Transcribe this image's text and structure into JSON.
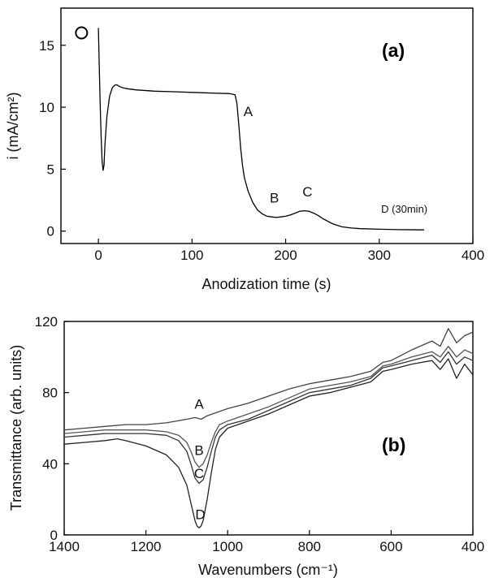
{
  "chart_data": [
    {
      "type": "line",
      "panel_label": "(a)",
      "xlabel": "Anodization time (s)",
      "ylabel": "i (mA/cm²)",
      "xlim": [
        -40,
        400
      ],
      "ylim": [
        -1,
        18
      ],
      "xticks": [
        0,
        100,
        200,
        300,
        400
      ],
      "yticks": [
        0,
        5,
        10,
        15
      ],
      "series": [
        {
          "color": "#000000",
          "x": [
            0,
            1,
            2,
            3,
            4,
            5,
            6,
            7,
            9,
            12,
            15,
            18,
            20,
            22,
            25,
            30,
            40,
            60,
            80,
            100,
            120,
            140,
            146,
            148,
            150,
            152,
            154,
            156,
            160,
            165,
            170,
            175,
            180,
            185,
            190,
            195,
            200,
            205,
            210,
            215,
            220,
            225,
            230,
            235,
            240,
            250,
            260,
            270,
            280,
            300,
            320,
            348
          ],
          "y": [
            16.4,
            13.2,
            10.0,
            7.6,
            5.6,
            4.9,
            5.3,
            7.0,
            9.2,
            10.9,
            11.6,
            11.8,
            11.8,
            11.7,
            11.6,
            11.5,
            11.4,
            11.3,
            11.25,
            11.2,
            11.15,
            11.1,
            11.0,
            10.3,
            8.6,
            6.7,
            5.3,
            4.3,
            3.2,
            2.3,
            1.7,
            1.4,
            1.2,
            1.15,
            1.1,
            1.15,
            1.2,
            1.3,
            1.45,
            1.6,
            1.65,
            1.6,
            1.45,
            1.25,
            1.0,
            0.6,
            0.35,
            0.25,
            0.2,
            0.15,
            0.12,
            0.1
          ]
        }
      ],
      "marker_point": {
        "x": -18,
        "y": 16
      },
      "annotations": [
        {
          "text": "A",
          "x": 155,
          "y": 9.3
        },
        {
          "text": "B",
          "x": 183,
          "y": 2.3
        },
        {
          "text": "C",
          "x": 218,
          "y": 2.8
        },
        {
          "text": "D (30min)",
          "x": 302,
          "y": 1.5
        }
      ]
    },
    {
      "type": "line",
      "panel_label": "(b)",
      "xlabel": "Wavenumbers (cm⁻¹)",
      "ylabel": "Transmittance (arb. units)",
      "xlim": [
        1400,
        400
      ],
      "ylim": [
        0,
        120
      ],
      "x_reversed": true,
      "xticks": [
        1400,
        1200,
        1000,
        800,
        600,
        400
      ],
      "yticks": [
        0,
        40,
        80,
        120
      ],
      "series": [
        {
          "name": "A",
          "color": "#444444",
          "x": [
            1400,
            1350,
            1300,
            1250,
            1200,
            1150,
            1100,
            1080,
            1065,
            1050,
            1000,
            950,
            900,
            850,
            800,
            750,
            700,
            650,
            620,
            600,
            550,
            500,
            480,
            460,
            440,
            420,
            400
          ],
          "y": [
            59,
            60,
            61,
            62,
            62,
            63,
            65,
            66,
            65,
            67,
            71,
            74,
            78,
            82,
            85,
            87,
            89,
            92,
            97,
            98,
            104,
            109,
            106,
            116,
            108,
            112,
            114
          ]
        },
        {
          "name": "B",
          "color": "#555555",
          "x": [
            1400,
            1350,
            1300,
            1250,
            1200,
            1150,
            1120,
            1100,
            1090,
            1080,
            1070,
            1060,
            1050,
            1040,
            1030,
            1020,
            1000,
            950,
            900,
            850,
            800,
            750,
            700,
            650,
            620,
            600,
            550,
            500,
            480,
            460,
            440,
            420,
            400
          ],
          "y": [
            57,
            58,
            59,
            59,
            59,
            58,
            56,
            52,
            47,
            41,
            38,
            40,
            45,
            52,
            58,
            62,
            64,
            68,
            72,
            77,
            82,
            84,
            86,
            89,
            95,
            96,
            100,
            103,
            100,
            106,
            100,
            104,
            102
          ]
        },
        {
          "name": "C",
          "color": "#333333",
          "x": [
            1400,
            1350,
            1300,
            1250,
            1200,
            1150,
            1120,
            1100,
            1090,
            1080,
            1070,
            1060,
            1050,
            1040,
            1030,
            1020,
            1000,
            950,
            900,
            850,
            800,
            750,
            700,
            650,
            620,
            600,
            550,
            500,
            480,
            460,
            440,
            420,
            400
          ],
          "y": [
            55,
            56,
            57,
            57,
            57,
            56,
            53,
            47,
            40,
            32,
            29,
            31,
            38,
            47,
            55,
            59,
            62,
            65,
            70,
            75,
            80,
            82,
            84,
            88,
            94,
            95,
            98,
            101,
            97,
            103,
            96,
            100,
            98
          ]
        },
        {
          "name": "D",
          "color": "#222222",
          "x": [
            1400,
            1350,
            1300,
            1270,
            1250,
            1200,
            1150,
            1120,
            1100,
            1090,
            1080,
            1075,
            1070,
            1065,
            1060,
            1050,
            1040,
            1030,
            1020,
            1000,
            950,
            900,
            850,
            800,
            750,
            700,
            650,
            620,
            600,
            550,
            500,
            480,
            460,
            440,
            420,
            400
          ],
          "y": [
            51,
            52,
            53,
            54,
            53,
            50,
            45,
            38,
            28,
            18,
            8,
            5,
            4,
            5,
            8,
            20,
            35,
            48,
            55,
            60,
            64,
            68,
            73,
            78,
            80,
            83,
            86,
            92,
            93,
            96,
            98,
            93,
            99,
            88,
            96,
            90
          ]
        }
      ],
      "annotations": [
        {
          "text": "A",
          "x": 1070,
          "y": 71
        },
        {
          "text": "B",
          "x": 1070,
          "y": 45
        },
        {
          "text": "C",
          "x": 1070,
          "y": 32
        },
        {
          "text": "D",
          "x": 1067,
          "y": 9
        }
      ]
    }
  ]
}
